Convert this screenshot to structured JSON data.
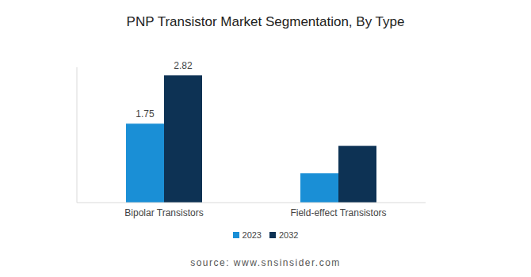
{
  "chart_data": {
    "type": "bar",
    "title": "PNP Transistor Market Segmentation, By Type",
    "source": "source: www.snsinsider.com",
    "categories": [
      "Bipolar Transistors",
      "Field-effect Transistors"
    ],
    "series": [
      {
        "name": "2023",
        "color": "#1a8fd6",
        "values": [
          1.75,
          0.65
        ],
        "value_labels": [
          "1.75",
          null
        ]
      },
      {
        "name": "2032",
        "color": "#0d3254",
        "values": [
          2.82,
          1.26
        ],
        "value_labels": [
          "2.82",
          null
        ]
      }
    ],
    "ylim": [
      0,
      3
    ],
    "tick_labels": "x",
    "grid": false,
    "legend": "bottom",
    "data_labels": true
  }
}
